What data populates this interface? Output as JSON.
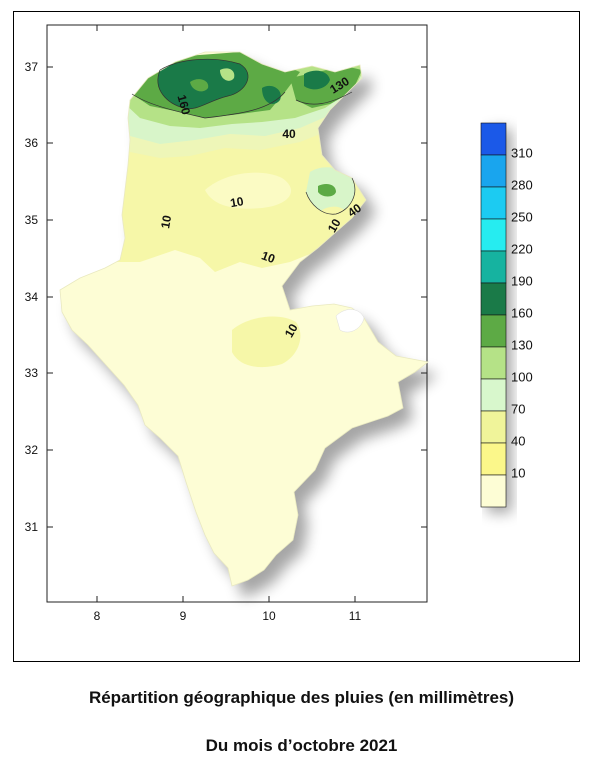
{
  "caption": {
    "title": "Répartition géographique des pluies (en millimètres)",
    "subtitle": "Du mois d’octobre 2021"
  },
  "map": {
    "x_ticks": [
      "8",
      "9",
      "10",
      "11"
    ],
    "y_ticks": [
      "37",
      "36",
      "35",
      "34",
      "33",
      "32",
      "31"
    ],
    "contour_labels": [
      {
        "text": "130",
        "rotate": -32
      },
      {
        "text": "160",
        "rotate": 75
      },
      {
        "text": "40",
        "rotate": 0
      },
      {
        "text": "10",
        "rotate": -80
      },
      {
        "text": "10",
        "rotate": -10
      },
      {
        "text": "40",
        "rotate": -35
      },
      {
        "text": "10",
        "rotate": -60
      },
      {
        "text": "10",
        "rotate": 20
      },
      {
        "text": "10",
        "rotate": -60
      }
    ]
  },
  "legend": {
    "classes": [
      {
        "label": "310",
        "color": "#1b59e8"
      },
      {
        "label": "280",
        "color": "#19a5ee"
      },
      {
        "label": "250",
        "color": "#1ccbf2"
      },
      {
        "label": "220",
        "color": "#26ecf0"
      },
      {
        "label": "190",
        "color": "#16b3a0"
      },
      {
        "label": "160",
        "color": "#1a7a48"
      },
      {
        "label": "130",
        "color": "#5daa45"
      },
      {
        "label": "100",
        "color": "#b5e287"
      },
      {
        "label": "70",
        "color": "#d8f7cc"
      },
      {
        "label": "40",
        "color": "#f0f49a"
      },
      {
        "label": "10",
        "color": "#fbf78a"
      },
      {
        "label": "",
        "color": "#fdfdd5"
      }
    ]
  }
}
